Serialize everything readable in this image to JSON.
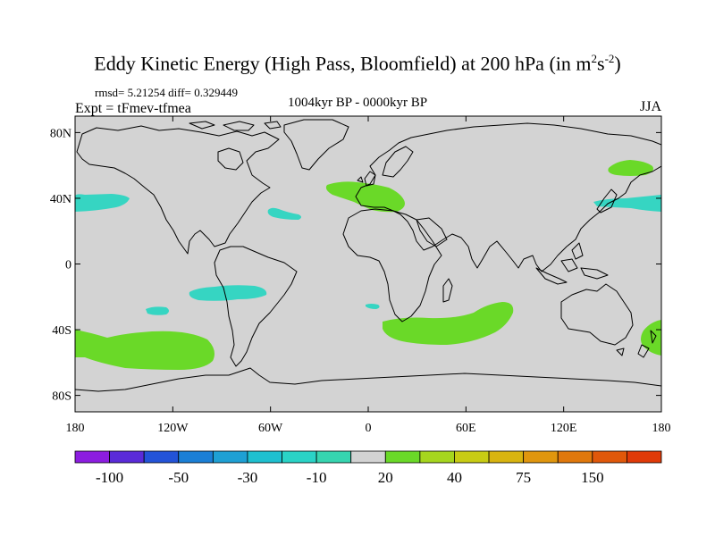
{
  "title": {
    "main": "Eddy Kinetic Energy (High Pass, Bloomfield) at 200 hPa (in m",
    "sup1": "2",
    "mid": "s",
    "sup2": "-2",
    "close": ")"
  },
  "stats": "rmsd= 5.21254 diff= 0.329449",
  "expt": "Expt = tFmev-tfmea",
  "period": "1004kyr BP - 0000kyr BP",
  "season": "JJA",
  "map": {
    "projection": "cylindrical-equidistant",
    "lon_range": [
      -180,
      180
    ],
    "lat_range": [
      -90,
      90
    ],
    "y_tick_labels": [
      "80N",
      "40N",
      "0",
      "40S",
      "80S"
    ],
    "y_tick_values": [
      80,
      40,
      0,
      -40,
      -80
    ],
    "x_tick_labels": [
      "180",
      "120W",
      "60W",
      "0",
      "60E",
      "120E",
      "180"
    ],
    "x_tick_values": [
      -180,
      -120,
      -60,
      0,
      60,
      120,
      180
    ],
    "colors": {
      "land_ocean": "#d3d3d3",
      "positive": "#6ad928",
      "negative": "#36d5c2",
      "coast": "#000000"
    }
  },
  "anomalies": [
    {
      "id": "n-pacific-east",
      "sign": "negative",
      "lon": -160,
      "lat": 40
    },
    {
      "id": "n-atlantic-west",
      "sign": "negative",
      "lon": -50,
      "lat": 32
    },
    {
      "id": "s-pacific-central",
      "sign": "negative",
      "lon": -90,
      "lat": -18
    },
    {
      "id": "s-pacific-small",
      "sign": "negative",
      "lon": -113,
      "lat": -29
    },
    {
      "id": "s-atlantic-small",
      "sign": "negative",
      "lon": 2,
      "lat": -25
    },
    {
      "id": "nw-pacific",
      "sign": "negative",
      "lon": 160,
      "lat": 38
    },
    {
      "id": "europe-med",
      "sign": "positive",
      "lon": 10,
      "lat": 42
    },
    {
      "id": "kamchatka",
      "sign": "positive",
      "lon": 160,
      "lat": 60
    },
    {
      "id": "s-pacific-large",
      "sign": "positive",
      "lon": -150,
      "lat": -50
    },
    {
      "id": "s-indian-ocean",
      "sign": "positive",
      "lon": 70,
      "lat": -32
    },
    {
      "id": "new-zealand",
      "sign": "positive",
      "lon": 175,
      "lat": -45
    }
  ],
  "colorbar": {
    "colors": [
      "#8c1de0",
      "#5a2bd8",
      "#2353d8",
      "#1b7fd6",
      "#1ea0d4",
      "#1ec0d0",
      "#2ad3c6",
      "#36d5b0",
      "#d3d3d3",
      "#6ad928",
      "#a6d61e",
      "#c8cc14",
      "#d8b410",
      "#e0960e",
      "#e0780c",
      "#e0580a",
      "#e03a08"
    ],
    "labels": [
      "-100",
      "-50",
      "-30",
      "-10",
      "20",
      "40",
      "75",
      "150"
    ]
  }
}
